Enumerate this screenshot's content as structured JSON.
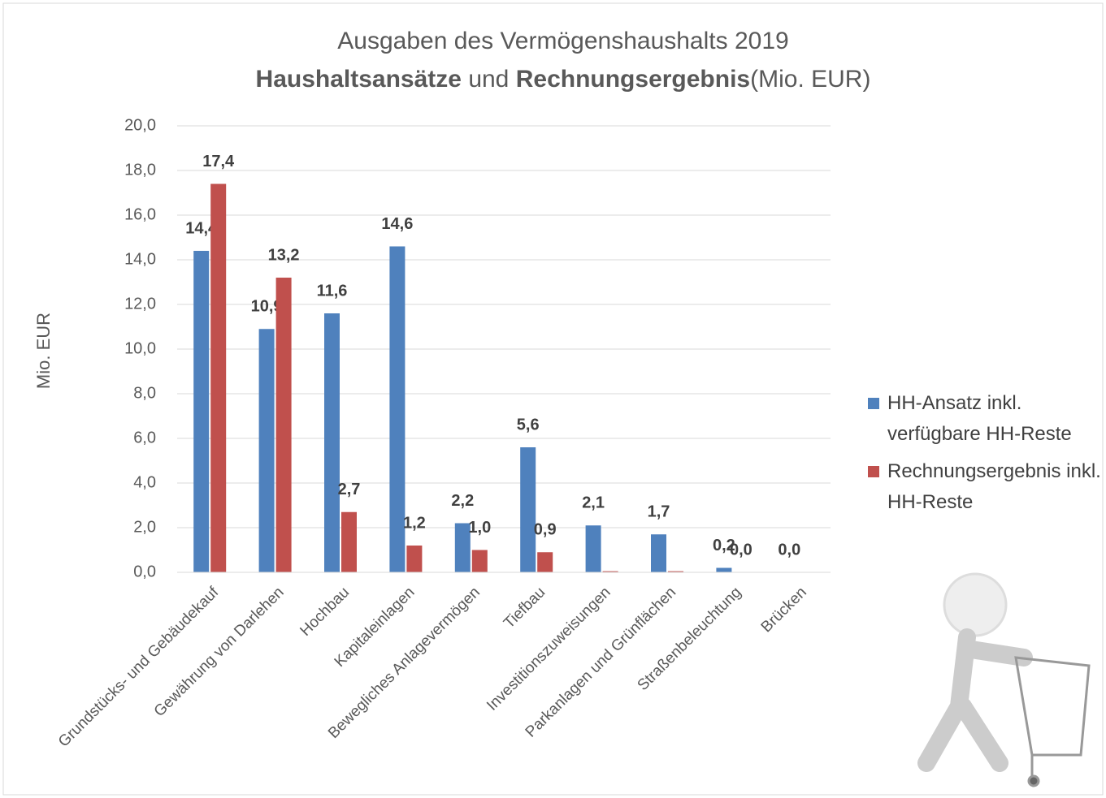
{
  "chart_data": {
    "type": "bar",
    "title": "Ausgaben des Vermögenshaushalts 2019",
    "subtitle_parts": [
      "Haushaltsansätze",
      "und",
      "Rechnungsergebnis",
      "(Mio. EUR)"
    ],
    "ylabel": "Mio. EUR",
    "categories": [
      "Grundstücks- und Gebäudekauf",
      "Gewährung von Darlehen",
      "Hochbau",
      "Kapitaleinlagen",
      "Bewegliches Anlagevermögen",
      "Tiefbau",
      "Investitionszuweisungen",
      "Parkanlagen und Grünflächen",
      "Straßenbeleuchtung",
      "Brücken"
    ],
    "series": [
      {
        "name": "HH-Ansatz inkl. verfügbare HH-Reste",
        "color": "#4f81bd",
        "values": [
          14.4,
          10.9,
          11.6,
          14.6,
          2.2,
          5.6,
          2.1,
          1.7,
          0.2,
          0.0
        ],
        "value_labels": [
          "14,4",
          "10,9",
          "11,6",
          "14,6",
          "2,2",
          "5,6",
          "2,1",
          "1,7",
          "0,2",
          "0,0"
        ]
      },
      {
        "name": "Rechnungsergebnis inkl. HH-Reste",
        "color": "#c0504d",
        "values": [
          17.4,
          13.2,
          2.7,
          1.2,
          1.0,
          0.9,
          0.05,
          0.05,
          0.0,
          0.0
        ],
        "value_labels": [
          "17,4",
          "13,2",
          "2,7",
          "1,2",
          "1,0",
          "0,9",
          null,
          null,
          "0,0",
          null
        ]
      }
    ],
    "ylim": [
      0,
      20
    ],
    "yticks": [
      {
        "value": 0,
        "label": "0,0"
      },
      {
        "value": 2,
        "label": "2,0"
      },
      {
        "value": 4,
        "label": "4,0"
      },
      {
        "value": 6,
        "label": "6,0"
      },
      {
        "value": 8,
        "label": "8,0"
      },
      {
        "value": 10,
        "label": "10,0"
      },
      {
        "value": 12,
        "label": "12,0"
      },
      {
        "value": 14,
        "label": "14,0"
      },
      {
        "value": 16,
        "label": "16,0"
      },
      {
        "value": 18,
        "label": "18,0"
      },
      {
        "value": 20,
        "label": "20,0"
      }
    ],
    "grid": true,
    "legend": "right"
  }
}
